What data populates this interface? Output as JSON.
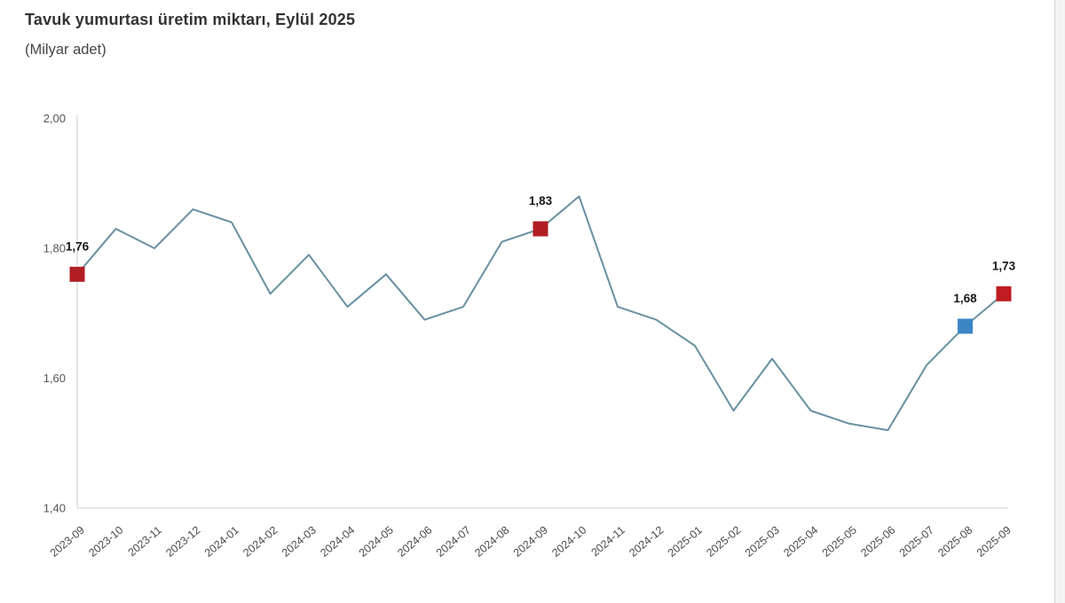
{
  "chart_data": {
    "type": "line",
    "title": "Tavuk yumurtası üretim miktarı, Eylül 2025",
    "subtitle": "(Milyar adet)",
    "x": [
      "2023-09",
      "2023-10",
      "2023-11",
      "2023-12",
      "2024-01",
      "2024-02",
      "2024-03",
      "2024-04",
      "2024-05",
      "2024-06",
      "2024-07",
      "2024-08",
      "2024-09",
      "2024-10",
      "2024-11",
      "2024-12",
      "2025-01",
      "2025-02",
      "2025-03",
      "2025-04",
      "2025-05",
      "2025-06",
      "2025-07",
      "2025-08",
      "2025-09"
    ],
    "values": [
      1.76,
      1.83,
      1.8,
      1.86,
      1.84,
      1.73,
      1.79,
      1.71,
      1.76,
      1.69,
      1.71,
      1.81,
      1.83,
      1.88,
      1.71,
      1.69,
      1.65,
      1.55,
      1.63,
      1.55,
      1.53,
      1.52,
      1.62,
      1.68,
      1.73
    ],
    "ylim": [
      1.4,
      2.0
    ],
    "yticks": [
      1.4,
      1.6,
      1.8,
      2.0
    ],
    "ytick_labels": [
      "1,40",
      "1,60",
      "1,80",
      "2,00"
    ],
    "grid": false,
    "legend": "none",
    "line_color": "#6890a2",
    "axis_line_color": "#d9d9d9",
    "tick_label_color": "#555555",
    "x_label_color": "#4a4a4a",
    "value_label_color": "#171717",
    "highlights": [
      {
        "index": 0,
        "label": "1,76",
        "color": "#b01e24"
      },
      {
        "index": 12,
        "label": "1,83",
        "color": "#b01e24"
      },
      {
        "index": 23,
        "label": "1,68",
        "color": "#3c86c5"
      },
      {
        "index": 24,
        "label": "1,73",
        "color": "#bf1b21"
      }
    ]
  }
}
